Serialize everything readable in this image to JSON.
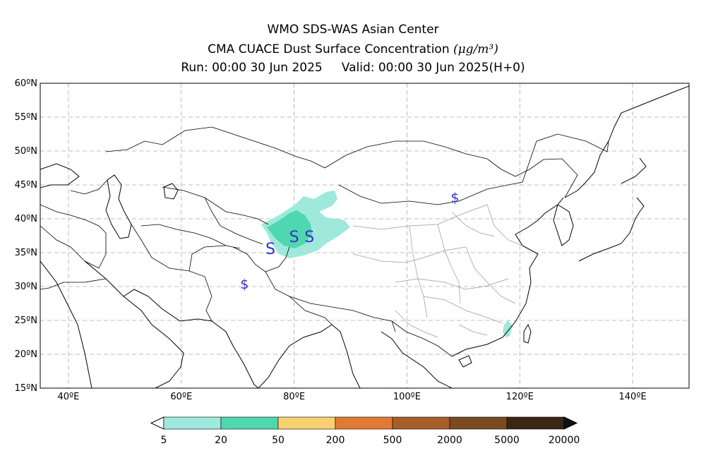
{
  "title": {
    "line1": "WMO SDS-WAS Asian Center",
    "line2_text": "CMA CUACE Dust Surface Concentration",
    "line2_unit": "(μg/m³)",
    "run": "Run: 00:00 30 Jun 2025",
    "valid": "Valid: 00:00 30 Jun 2025(H+0)"
  },
  "map": {
    "lon_range": [
      35,
      150
    ],
    "lat_range": [
      15,
      60
    ],
    "lat_ticks": [
      "60ºN",
      "55ºN",
      "50ºN",
      "45ºN",
      "40ºN",
      "35ºN",
      "30ºN",
      "25ºN",
      "20ºN",
      "15ºN"
    ],
    "lat_values": [
      60,
      55,
      50,
      45,
      40,
      35,
      30,
      25,
      20,
      15
    ],
    "lon_ticks": [
      "40ºE",
      "60ºE",
      "80ºE",
      "100ºE",
      "120ºE",
      "140ºE"
    ],
    "lon_values": [
      40,
      60,
      80,
      100,
      120,
      140
    ],
    "grid": true,
    "storm_markers": [
      {
        "symbol": "$",
        "lon": 108.5,
        "lat": 43.2,
        "style": "small"
      },
      {
        "symbol": "S",
        "lon": 80.0,
        "lat": 37.3,
        "style": "large"
      },
      {
        "symbol": "S",
        "lon": 82.7,
        "lat": 37.3,
        "style": "large"
      },
      {
        "symbol": "S",
        "lon": 75.8,
        "lat": 35.5,
        "style": "large"
      },
      {
        "symbol": "$",
        "lon": 71.2,
        "lat": 30.4,
        "style": "small"
      }
    ]
  },
  "colorbar": {
    "labels": [
      "5",
      "20",
      "50",
      "200",
      "500",
      "2000",
      "5000",
      "20000"
    ],
    "colors": [
      "#9fe9dc",
      "#4fd8b0",
      "#f8d070",
      "#e07a35",
      "#a85e28",
      "#7a4a20",
      "#3a2615"
    ],
    "marker_color": "#3333cc"
  }
}
